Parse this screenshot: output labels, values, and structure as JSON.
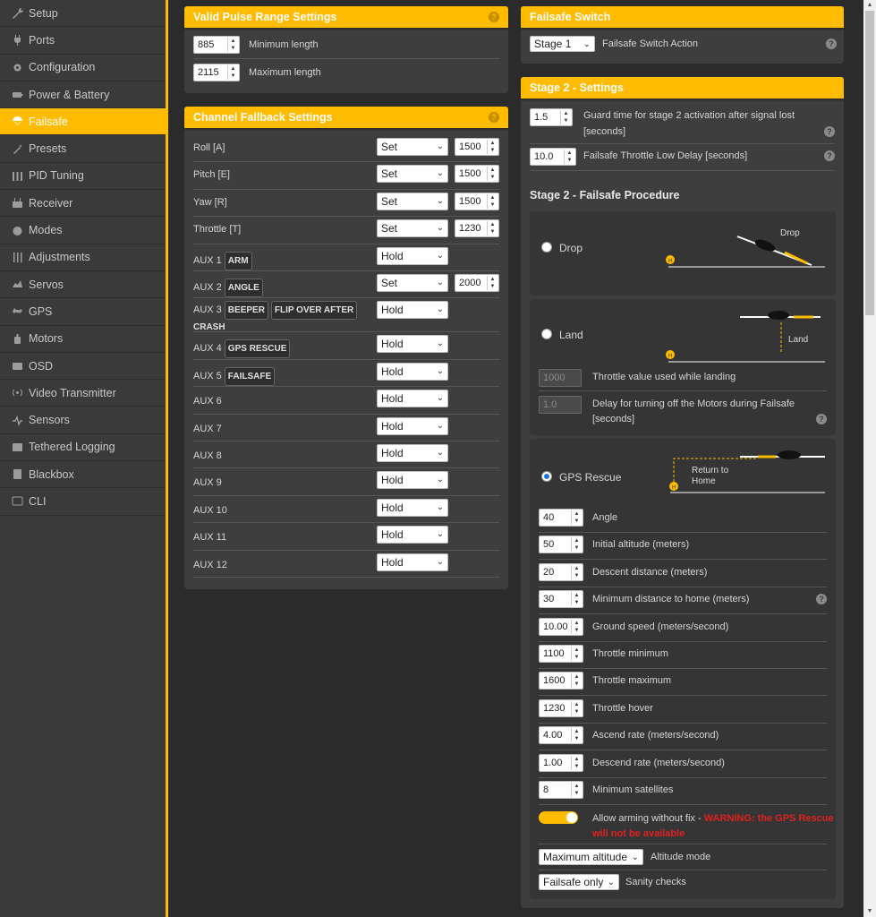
{
  "sidebar": {
    "items": [
      {
        "label": "Setup",
        "icon": "wrench-icon"
      },
      {
        "label": "Ports",
        "icon": "plug-icon"
      },
      {
        "label": "Configuration",
        "icon": "gear-icon"
      },
      {
        "label": "Power & Battery",
        "icon": "battery-icon"
      },
      {
        "label": "Failsafe",
        "icon": "parachute-icon",
        "active": true
      },
      {
        "label": "Presets",
        "icon": "magic-wand-icon"
      },
      {
        "label": "PID Tuning",
        "icon": "sliders-icon"
      },
      {
        "label": "Receiver",
        "icon": "receiver-icon"
      },
      {
        "label": "Modes",
        "icon": "modes-icon"
      },
      {
        "label": "Adjustments",
        "icon": "adjustments-icon"
      },
      {
        "label": "Servos",
        "icon": "servo-icon"
      },
      {
        "label": "GPS",
        "icon": "satellite-icon"
      },
      {
        "label": "Motors",
        "icon": "motor-icon"
      },
      {
        "label": "OSD",
        "icon": "osd-icon"
      },
      {
        "label": "Video Transmitter",
        "icon": "broadcast-icon"
      },
      {
        "label": "Sensors",
        "icon": "pulse-icon"
      },
      {
        "label": "Tethered Logging",
        "icon": "logging-icon"
      },
      {
        "label": "Blackbox",
        "icon": "blackbox-icon"
      },
      {
        "label": "CLI",
        "icon": "terminal-icon"
      }
    ],
    "accent": "#ffbb00"
  },
  "pulse_range": {
    "title": "Valid Pulse Range Settings",
    "min": {
      "value": "885",
      "label": "Minimum length"
    },
    "max": {
      "value": "2115",
      "label": "Maximum length"
    }
  },
  "fallback": {
    "title": "Channel Fallback Settings",
    "channels": [
      {
        "name": "Roll [A]",
        "mode": "Set",
        "value": "1500"
      },
      {
        "name": "Pitch [E]",
        "mode": "Set",
        "value": "1500"
      },
      {
        "name": "Yaw [R]",
        "mode": "Set",
        "value": "1500"
      },
      {
        "name": "Throttle [T]",
        "mode": "Set",
        "value": "1230"
      }
    ],
    "aux": [
      {
        "name": "AUX 1",
        "tags": [
          "ARM"
        ],
        "mode": "Hold",
        "value": ""
      },
      {
        "name": "AUX 2",
        "tags": [
          "ANGLE"
        ],
        "mode": "Set",
        "value": "2000"
      },
      {
        "name": "AUX 3",
        "tags": [
          "BEEPER",
          "FLIP OVER AFTER"
        ],
        "tail": "CRASH",
        "mode": "Hold",
        "value": ""
      },
      {
        "name": "AUX 4",
        "tags": [
          "GPS RESCUE"
        ],
        "mode": "Hold",
        "value": ""
      },
      {
        "name": "AUX 5",
        "tags": [
          "FAILSAFE"
        ],
        "mode": "Hold",
        "value": ""
      },
      {
        "name": "AUX 6",
        "tags": [],
        "mode": "Hold",
        "value": ""
      },
      {
        "name": "AUX 7",
        "tags": [],
        "mode": "Hold",
        "value": ""
      },
      {
        "name": "AUX 8",
        "tags": [],
        "mode": "Hold",
        "value": ""
      },
      {
        "name": "AUX 9",
        "tags": [],
        "mode": "Hold",
        "value": ""
      },
      {
        "name": "AUX 10",
        "tags": [],
        "mode": "Hold",
        "value": ""
      },
      {
        "name": "AUX 11",
        "tags": [],
        "mode": "Hold",
        "value": ""
      },
      {
        "name": "AUX 12",
        "tags": [],
        "mode": "Hold",
        "value": ""
      }
    ]
  },
  "failsafe_switch": {
    "title": "Failsafe Switch",
    "action_value": "Stage 1",
    "action_label": "Failsafe Switch Action"
  },
  "stage2": {
    "title": "Stage 2 - Settings",
    "guard_value": "1.5",
    "guard_label": "Guard time for stage 2 activation after signal lost",
    "guard_label2": "[seconds]",
    "throttle_delay_value": "10.0",
    "throttle_delay_label": "Failsafe Throttle Low Delay [seconds]",
    "procedure_title": "Stage 2 - Failsafe Procedure",
    "drop": {
      "label": "Drop",
      "diagram_label": "Drop"
    },
    "land": {
      "label": "Land",
      "diagram_label": "Land",
      "throttle_value": "1000",
      "throttle_label": "Throttle value used while landing",
      "delay_value": "1.0",
      "delay_label": "Delay for turning off the Motors during Failsafe",
      "delay_label2": "[seconds]"
    },
    "gps": {
      "label": "GPS Rescue",
      "diagram_label1": "Return to",
      "diagram_label2": "Home",
      "settings": [
        {
          "value": "40",
          "label": "Angle"
        },
        {
          "value": "50",
          "label": "Initial altitude (meters)"
        },
        {
          "value": "20",
          "label": "Descent distance (meters)"
        },
        {
          "value": "30",
          "label": "Minimum distance to home (meters)",
          "help": true
        },
        {
          "value": "10.00",
          "label": "Ground speed (meters/second)"
        },
        {
          "value": "1100",
          "label": "Throttle minimum"
        },
        {
          "value": "1600",
          "label": "Throttle maximum"
        },
        {
          "value": "1230",
          "label": "Throttle hover"
        },
        {
          "value": "4.00",
          "label": "Ascend rate (meters/second)"
        },
        {
          "value": "1.00",
          "label": "Descend rate (meters/second)"
        },
        {
          "value": "8",
          "label": "Minimum satellites"
        }
      ],
      "arming_label": "Allow arming without fix -",
      "arming_warning": "WARNING: the GPS Rescue",
      "arming_warning2": "will not be available",
      "altitude_mode_value": "Maximum altitude",
      "altitude_mode_label": "Altitude mode",
      "sanity_value": "Failsafe only",
      "sanity_label": "Sanity checks"
    }
  },
  "help_glyph": "?"
}
